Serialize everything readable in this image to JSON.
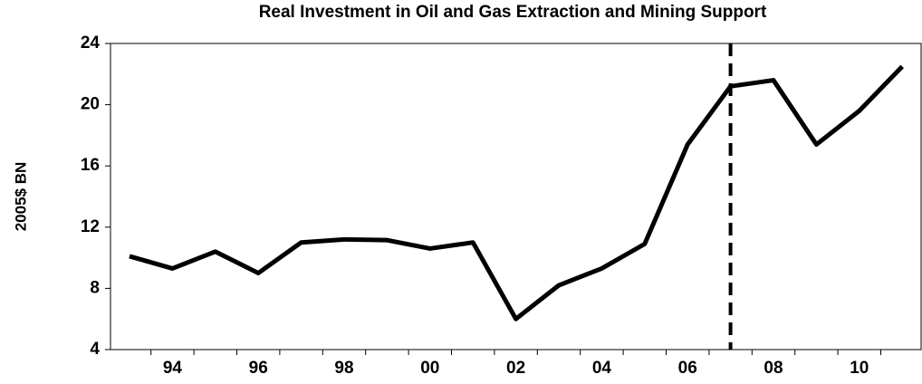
{
  "chart_data": {
    "type": "line",
    "title": "Real Investment in Oil and Gas Extraction and Mining Support",
    "y_label": "2005$ BN",
    "categories": [
      null,
      "94",
      null,
      "96",
      null,
      "98",
      null,
      "00",
      null,
      "02",
      null,
      "04",
      null,
      "06",
      null,
      "08",
      null,
      "10",
      null
    ],
    "series": [
      {
        "name": "Real Investment",
        "color": "#000000",
        "values": [
          10.1,
          9.3,
          10.4,
          9.0,
          11.0,
          11.2,
          11.15,
          10.6,
          11.0,
          6.0,
          8.2,
          9.3,
          10.9,
          17.4,
          21.2,
          21.6,
          17.4,
          19.6,
          22.5
        ]
      }
    ],
    "ylim": [
      4,
      24
    ],
    "yticks": [
      4,
      8,
      12,
      16,
      20,
      24
    ],
    "reference_line": {
      "category_index": 14,
      "style": "dashed"
    }
  }
}
